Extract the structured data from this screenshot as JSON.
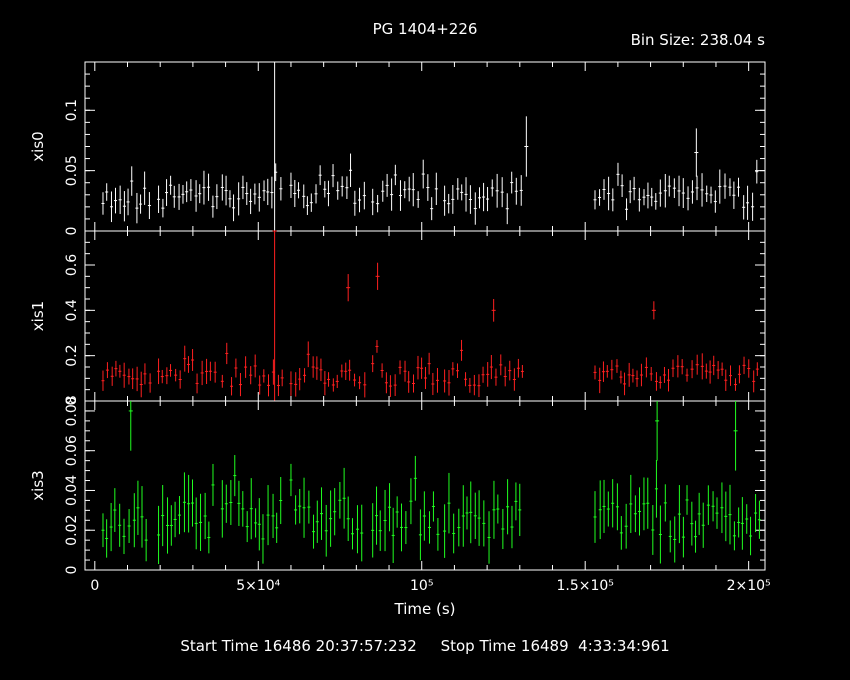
{
  "title": "PG 1404+226",
  "bin_size": "Bin Size: 238.04 s",
  "footer": "Start Time 16486 20:37:57:232     Stop Time 16489  4:33:34:961",
  "chart_data": {
    "type": "scatter",
    "subtype": "light curve with error bars",
    "xlabel": "Time (s)",
    "xlim": [
      -3000,
      205000
    ],
    "x_ticks": [
      {
        "value": 0,
        "label": "0"
      },
      {
        "value": 50000,
        "label": "5×10⁴"
      },
      {
        "value": 100000,
        "label": "10⁵"
      },
      {
        "value": 150000,
        "label": "1.5×10⁵"
      },
      {
        "value": 200000,
        "label": "2×10⁵"
      }
    ],
    "x_minor_step": 10000,
    "segments": [
      [
        2500,
        17000
      ],
      [
        19500,
        37500
      ],
      [
        39000,
        57500
      ],
      [
        60000,
        83000
      ],
      [
        85000,
        105000
      ],
      [
        107000,
        131000
      ],
      [
        153000,
        204000
      ]
    ],
    "series": [
      {
        "name": "xis0",
        "color": "#ffffff",
        "ylim": [
          0,
          0.14
        ],
        "y_ticks": [
          {
            "value": 0,
            "label": "0"
          },
          {
            "value": 0.05,
            "label": "0.05"
          },
          {
            "value": 0.1,
            "label": "0.1"
          }
        ],
        "y_minor_step": 0.01,
        "base": 0.028,
        "noise": 0.01,
        "err": 0.011,
        "spikes": [
          {
            "x": 55000,
            "y": 0.14,
            "err": 0.0
          },
          {
            "x": 132000,
            "y": 0.07,
            "err": 0.025
          },
          {
            "x": 184000,
            "y": 0.065,
            "err": 0.02
          }
        ],
        "seed": 11
      },
      {
        "name": "xis1",
        "color": "#ff2020",
        "ylim": [
          0,
          0.75
        ],
        "y_ticks": [
          {
            "value": 0.2,
            "label": "0.2"
          },
          {
            "value": 0.4,
            "label": "0.4"
          },
          {
            "value": 0.6,
            "label": "0.6"
          },
          {
            "value": 0.0,
            "label": "0"
          }
        ],
        "y_minor_step": 0.05,
        "base": 0.115,
        "noise": 0.05,
        "err": 0.045,
        "spikes": [
          {
            "x": 55000,
            "y": 0.75,
            "err": 0.0
          },
          {
            "x": 77500,
            "y": 0.5,
            "err": 0.06
          },
          {
            "x": 86500,
            "y": 0.55,
            "err": 0.06
          },
          {
            "x": 122000,
            "y": 0.4,
            "err": 0.05
          },
          {
            "x": 171000,
            "y": 0.4,
            "err": 0.04
          }
        ],
        "seed": 23
      },
      {
        "name": "xis3",
        "color": "#20ff20",
        "ylim": [
          0,
          0.085
        ],
        "y_ticks": [
          {
            "value": 0,
            "label": "0"
          },
          {
            "value": 0.02,
            "label": "0.02"
          },
          {
            "value": 0.04,
            "label": "0.04"
          },
          {
            "value": 0.06,
            "label": "0.06"
          },
          {
            "value": 0.08,
            "label": "0.08"
          }
        ],
        "y_minor_step": 0.005,
        "base": 0.025,
        "noise": 0.01,
        "err": 0.012,
        "spikes": [
          {
            "x": 11000,
            "y": 0.08,
            "err": 0.02
          },
          {
            "x": 172000,
            "y": 0.075,
            "err": 0.02
          },
          {
            "x": 196000,
            "y": 0.07,
            "err": 0.02
          }
        ],
        "seed": 37
      }
    ]
  }
}
